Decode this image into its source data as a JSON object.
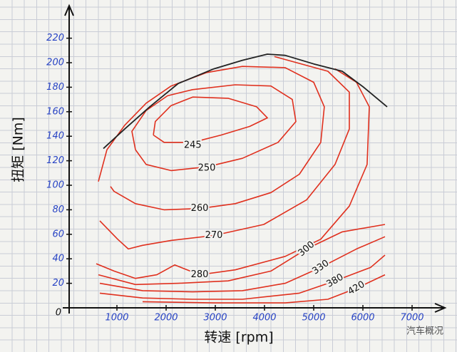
{
  "chart_data": {
    "type": "contour",
    "x_label": "转速 [rpm]",
    "y_label": "扭矩 [Nm]",
    "watermark": "汽车概况",
    "xlim": [
      0,
      7600
    ],
    "ylim": [
      0,
      245
    ],
    "xticks": [
      1000,
      2000,
      3000,
      4000,
      5000,
      6000,
      7000
    ],
    "yticks": [
      0,
      20,
      40,
      60,
      80,
      100,
      120,
      140,
      160,
      180,
      200,
      220
    ],
    "boundary": {
      "color": "#222222",
      "x": [
        725,
        1159,
        1667,
        2246,
        2971,
        3551,
        4058,
        4420,
        5000,
        5580,
        6014,
        6493
      ],
      "y": [
        130,
        146,
        164,
        183,
        195,
        202,
        207,
        206,
        199,
        193,
        180,
        164
      ]
    },
    "contour_color": "#e0301e",
    "contours": [
      {
        "level": 245,
        "x": [
          1740,
          1780,
          2100,
          2540,
          3260,
          3840,
          4060,
          3700,
          3120,
          2540,
          1960,
          1740
        ],
        "y": [
          141,
          152,
          165,
          172,
          171,
          164,
          155,
          148,
          141,
          135,
          135,
          141
        ]
      },
      {
        "level": 250,
        "x": [
          1377,
          1304,
          1594,
          2029,
          2536,
          3405,
          4130,
          4565,
          4637,
          4275,
          3550,
          2826,
          2101,
          1594,
          1377
        ],
        "y": [
          129,
          144,
          161,
          173,
          178,
          182,
          181,
          170,
          152,
          135,
          122,
          115,
          112,
          117,
          129
        ]
      },
      {
        "level": 260,
        "x": [
          623,
          797,
          1159,
          1594,
          2101,
          2826,
          3550,
          4420,
          5000,
          5216,
          5144,
          4709,
          4130,
          3405,
          2681,
          1956,
          1377,
          942,
          869
        ],
        "y": [
          103,
          129,
          149,
          167,
          181,
          192,
          197,
          196,
          184,
          164,
          135,
          109,
          94,
          85,
          81,
          80,
          85,
          95,
          99
        ]
      },
      {
        "level": 270,
        "x": [
          4202,
          5289,
          5724,
          5724,
          5434,
          4854,
          3985,
          2971,
          2101,
          1522,
          1232,
          1014,
          652
        ],
        "y": [
          205,
          193,
          176,
          146,
          117,
          88,
          68,
          59,
          55,
          51,
          48,
          56,
          71
        ]
      },
      {
        "level": 280,
        "x": [
          5434,
          5869,
          6130,
          6086,
          5724,
          5144,
          4420,
          3405,
          2681,
          2174,
          1811,
          1377,
          942,
          580
        ],
        "y": [
          195,
          184,
          164,
          117,
          83,
          56,
          42,
          31,
          27,
          35,
          27,
          24,
          30,
          36
        ]
      },
      {
        "level": 300,
        "x": [
          623,
          1377,
          2246,
          3261,
          4130,
          4854,
          5580,
          6449
        ],
        "y": [
          27,
          19,
          20,
          22,
          30,
          48,
          62,
          68
        ]
      },
      {
        "level": 330,
        "x": [
          652,
          1522,
          2536,
          3550,
          4420,
          5144,
          5869,
          6449
        ],
        "y": [
          20,
          14,
          13,
          14,
          20,
          33,
          48,
          58
        ]
      },
      {
        "level": 380,
        "x": [
          652,
          1522,
          2536,
          3550,
          4709,
          5434,
          6159,
          6449
        ],
        "y": [
          12,
          8,
          7,
          7,
          12,
          22,
          33,
          43
        ]
      },
      {
        "level": 420,
        "x": [
          1522,
          2971,
          4420,
          5289,
          5869,
          6449
        ],
        "y": [
          5,
          4,
          4,
          7,
          16,
          27
        ]
      }
    ]
  }
}
